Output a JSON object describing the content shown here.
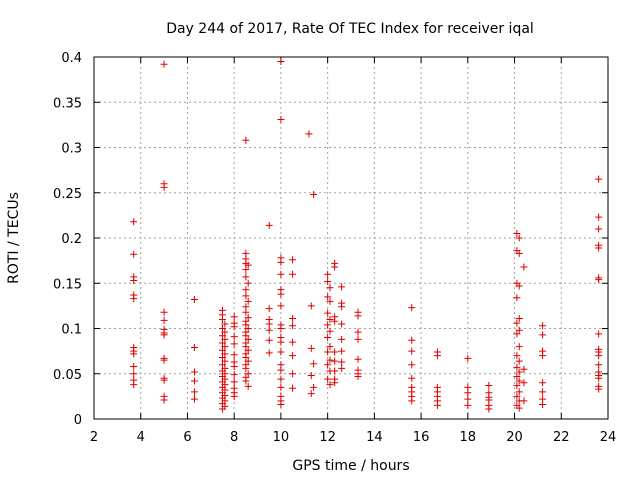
{
  "chart_data": {
    "type": "scatter",
    "title": "Day 244 of 2017, Rate Of TEC Index for receiver iqal",
    "xlabel": "GPS time / hours",
    "ylabel": "ROTI / TECUs",
    "xlim": [
      2,
      24
    ],
    "ylim": [
      0,
      0.4
    ],
    "xticks": [
      2,
      4,
      6,
      8,
      10,
      12,
      14,
      16,
      18,
      20,
      22,
      24
    ],
    "xtick_labels": [
      "2",
      "4",
      "6",
      "8",
      "10",
      "12",
      "14",
      "16",
      "18",
      "20",
      "22",
      "24"
    ],
    "yticks": [
      0,
      0.05,
      0.1,
      0.15,
      0.2,
      0.25,
      0.3,
      0.35,
      0.4
    ],
    "ytick_labels": [
      "0",
      "0.05",
      "0.1",
      "0.15",
      "0.2",
      "0.25",
      "0.3",
      "0.35",
      "0.4"
    ],
    "grid": true,
    "marker": "+",
    "color": "#e00000",
    "series": [
      {
        "name": "ROTI",
        "points": [
          [
            3.7,
            0.218
          ],
          [
            3.7,
            0.182
          ],
          [
            3.7,
            0.157
          ],
          [
            3.7,
            0.153
          ],
          [
            3.7,
            0.137
          ],
          [
            3.7,
            0.133
          ],
          [
            3.7,
            0.079
          ],
          [
            3.7,
            0.075
          ],
          [
            3.7,
            0.072
          ],
          [
            3.7,
            0.058
          ],
          [
            3.7,
            0.05
          ],
          [
            3.7,
            0.043
          ],
          [
            3.7,
            0.038
          ],
          [
            5.0,
            0.392
          ],
          [
            5.0,
            0.26
          ],
          [
            5.0,
            0.256
          ],
          [
            5.0,
            0.118
          ],
          [
            5.0,
            0.109
          ],
          [
            5.0,
            0.099
          ],
          [
            5.0,
            0.095
          ],
          [
            5.0,
            0.093
          ],
          [
            5.0,
            0.067
          ],
          [
            5.0,
            0.065
          ],
          [
            5.0,
            0.045
          ],
          [
            5.0,
            0.043
          ],
          [
            5.0,
            0.025
          ],
          [
            5.0,
            0.021
          ],
          [
            6.3,
            0.132
          ],
          [
            6.3,
            0.079
          ],
          [
            6.3,
            0.052
          ],
          [
            6.3,
            0.042
          ],
          [
            6.3,
            0.03
          ],
          [
            6.3,
            0.022
          ],
          [
            7.5,
            0.12
          ],
          [
            7.5,
            0.115
          ],
          [
            7.5,
            0.11
          ],
          [
            7.6,
            0.105
          ],
          [
            7.5,
            0.1
          ],
          [
            7.6,
            0.096
          ],
          [
            7.5,
            0.092
          ],
          [
            7.6,
            0.088
          ],
          [
            7.5,
            0.084
          ],
          [
            7.6,
            0.08
          ],
          [
            7.5,
            0.076
          ],
          [
            7.6,
            0.072
          ],
          [
            7.5,
            0.068
          ],
          [
            7.6,
            0.064
          ],
          [
            7.5,
            0.06
          ],
          [
            7.6,
            0.056
          ],
          [
            7.5,
            0.053
          ],
          [
            7.6,
            0.05
          ],
          [
            7.5,
            0.047
          ],
          [
            7.6,
            0.044
          ],
          [
            7.5,
            0.041
          ],
          [
            7.6,
            0.038
          ],
          [
            7.5,
            0.035
          ],
          [
            7.6,
            0.032
          ],
          [
            7.5,
            0.029
          ],
          [
            7.6,
            0.026
          ],
          [
            7.5,
            0.023
          ],
          [
            7.6,
            0.02
          ],
          [
            7.5,
            0.017
          ],
          [
            7.6,
            0.014
          ],
          [
            7.5,
            0.011
          ],
          [
            8.0,
            0.113
          ],
          [
            8.0,
            0.106
          ],
          [
            8.0,
            0.102
          ],
          [
            8.0,
            0.091
          ],
          [
            8.0,
            0.083
          ],
          [
            8.0,
            0.071
          ],
          [
            8.0,
            0.063
          ],
          [
            8.0,
            0.058
          ],
          [
            8.0,
            0.049
          ],
          [
            8.0,
            0.041
          ],
          [
            8.0,
            0.034
          ],
          [
            8.0,
            0.029
          ],
          [
            8.0,
            0.025
          ],
          [
            8.5,
            0.308
          ],
          [
            8.5,
            0.183
          ],
          [
            8.5,
            0.177
          ],
          [
            8.5,
            0.172
          ],
          [
            8.6,
            0.17
          ],
          [
            8.5,
            0.165
          ],
          [
            8.5,
            0.157
          ],
          [
            8.6,
            0.15
          ],
          [
            8.5,
            0.143
          ],
          [
            8.5,
            0.136
          ],
          [
            8.6,
            0.13
          ],
          [
            8.5,
            0.124
          ],
          [
            8.5,
            0.118
          ],
          [
            8.6,
            0.112
          ],
          [
            8.5,
            0.108
          ],
          [
            8.5,
            0.104
          ],
          [
            8.6,
            0.1
          ],
          [
            8.5,
            0.096
          ],
          [
            8.5,
            0.092
          ],
          [
            8.6,
            0.088
          ],
          [
            8.5,
            0.084
          ],
          [
            8.5,
            0.08
          ],
          [
            8.6,
            0.076
          ],
          [
            8.5,
            0.072
          ],
          [
            8.5,
            0.068
          ],
          [
            8.6,
            0.064
          ],
          [
            8.5,
            0.06
          ],
          [
            8.5,
            0.056
          ],
          [
            8.6,
            0.05
          ],
          [
            8.5,
            0.046
          ],
          [
            8.5,
            0.042
          ],
          [
            8.6,
            0.036
          ],
          [
            9.5,
            0.214
          ],
          [
            9.5,
            0.122
          ],
          [
            9.5,
            0.11
          ],
          [
            9.5,
            0.105
          ],
          [
            9.5,
            0.098
          ],
          [
            9.5,
            0.087
          ],
          [
            9.5,
            0.073
          ],
          [
            10.0,
            0.395
          ],
          [
            10.0,
            0.331
          ],
          [
            10.0,
            0.178
          ],
          [
            10.0,
            0.173
          ],
          [
            10.0,
            0.16
          ],
          [
            10.0,
            0.143
          ],
          [
            10.0,
            0.138
          ],
          [
            10.0,
            0.125
          ],
          [
            10.0,
            0.104
          ],
          [
            10.0,
            0.1
          ],
          [
            10.0,
            0.09
          ],
          [
            10.0,
            0.085
          ],
          [
            10.0,
            0.074
          ],
          [
            10.0,
            0.06
          ],
          [
            10.0,
            0.054
          ],
          [
            10.0,
            0.044
          ],
          [
            10.0,
            0.035
          ],
          [
            10.0,
            0.025
          ],
          [
            10.0,
            0.02
          ],
          [
            10.0,
            0.016
          ],
          [
            10.5,
            0.176
          ],
          [
            10.5,
            0.16
          ],
          [
            10.5,
            0.111
          ],
          [
            10.5,
            0.103
          ],
          [
            10.5,
            0.085
          ],
          [
            10.5,
            0.07
          ],
          [
            10.5,
            0.05
          ],
          [
            10.5,
            0.034
          ],
          [
            11.2,
            0.315
          ],
          [
            11.4,
            0.248
          ],
          [
            11.3,
            0.125
          ],
          [
            11.3,
            0.078
          ],
          [
            11.4,
            0.061
          ],
          [
            11.3,
            0.048
          ],
          [
            11.4,
            0.035
          ],
          [
            11.3,
            0.028
          ],
          [
            12.0,
            0.16
          ],
          [
            12.0,
            0.152
          ],
          [
            12.1,
            0.145
          ],
          [
            12.0,
            0.135
          ],
          [
            12.1,
            0.13
          ],
          [
            12.0,
            0.117
          ],
          [
            12.1,
            0.11
          ],
          [
            12.0,
            0.104
          ],
          [
            12.1,
            0.097
          ],
          [
            12.0,
            0.09
          ],
          [
            12.1,
            0.08
          ],
          [
            12.0,
            0.074
          ],
          [
            12.1,
            0.065
          ],
          [
            12.0,
            0.06
          ],
          [
            12.1,
            0.053
          ],
          [
            12.0,
            0.044
          ],
          [
            12.1,
            0.038
          ],
          [
            12.3,
            0.172
          ],
          [
            12.3,
            0.168
          ],
          [
            12.3,
            0.113
          ],
          [
            12.3,
            0.108
          ],
          [
            12.3,
            0.074
          ],
          [
            12.3,
            0.064
          ],
          [
            12.3,
            0.053
          ],
          [
            12.3,
            0.044
          ],
          [
            12.3,
            0.04
          ],
          [
            12.6,
            0.146
          ],
          [
            12.6,
            0.128
          ],
          [
            12.6,
            0.124
          ],
          [
            12.6,
            0.105
          ],
          [
            12.6,
            0.088
          ],
          [
            12.6,
            0.075
          ],
          [
            12.6,
            0.063
          ],
          [
            12.6,
            0.056
          ],
          [
            13.3,
            0.118
          ],
          [
            13.3,
            0.114
          ],
          [
            13.3,
            0.096
          ],
          [
            13.3,
            0.088
          ],
          [
            13.3,
            0.066
          ],
          [
            13.3,
            0.054
          ],
          [
            13.3,
            0.05
          ],
          [
            13.3,
            0.047
          ],
          [
            15.6,
            0.123
          ],
          [
            15.6,
            0.087
          ],
          [
            15.6,
            0.075
          ],
          [
            15.6,
            0.06
          ],
          [
            15.6,
            0.045
          ],
          [
            15.6,
            0.035
          ],
          [
            15.6,
            0.03
          ],
          [
            15.6,
            0.025
          ],
          [
            15.6,
            0.02
          ],
          [
            16.7,
            0.074
          ],
          [
            16.7,
            0.07
          ],
          [
            16.7,
            0.035
          ],
          [
            16.7,
            0.03
          ],
          [
            16.7,
            0.025
          ],
          [
            16.7,
            0.02
          ],
          [
            16.7,
            0.015
          ],
          [
            18.0,
            0.067
          ],
          [
            18.0,
            0.035
          ],
          [
            18.0,
            0.029
          ],
          [
            18.0,
            0.022
          ],
          [
            18.0,
            0.015
          ],
          [
            18.9,
            0.037
          ],
          [
            18.9,
            0.029
          ],
          [
            18.9,
            0.024
          ],
          [
            18.9,
            0.021
          ],
          [
            18.9,
            0.015
          ],
          [
            18.9,
            0.011
          ],
          [
            20.1,
            0.205
          ],
          [
            20.2,
            0.2
          ],
          [
            20.1,
            0.186
          ],
          [
            20.2,
            0.183
          ],
          [
            20.1,
            0.15
          ],
          [
            20.2,
            0.147
          ],
          [
            20.1,
            0.134
          ],
          [
            20.2,
            0.111
          ],
          [
            20.1,
            0.106
          ],
          [
            20.2,
            0.098
          ],
          [
            20.1,
            0.094
          ],
          [
            20.2,
            0.08
          ],
          [
            20.1,
            0.07
          ],
          [
            20.2,
            0.064
          ],
          [
            20.1,
            0.057
          ],
          [
            20.2,
            0.052
          ],
          [
            20.1,
            0.047
          ],
          [
            20.2,
            0.042
          ],
          [
            20.1,
            0.037
          ],
          [
            20.2,
            0.03
          ],
          [
            20.1,
            0.025
          ],
          [
            20.2,
            0.02
          ],
          [
            20.1,
            0.015
          ],
          [
            20.2,
            0.012
          ],
          [
            20.4,
            0.168
          ],
          [
            20.4,
            0.055
          ],
          [
            20.4,
            0.04
          ],
          [
            20.4,
            0.02
          ],
          [
            21.2,
            0.103
          ],
          [
            21.2,
            0.093
          ],
          [
            21.2,
            0.075
          ],
          [
            21.2,
            0.07
          ],
          [
            21.2,
            0.04
          ],
          [
            21.2,
            0.03
          ],
          [
            21.2,
            0.022
          ],
          [
            21.2,
            0.016
          ],
          [
            23.6,
            0.265
          ],
          [
            23.6,
            0.223
          ],
          [
            23.6,
            0.21
          ],
          [
            23.6,
            0.192
          ],
          [
            23.6,
            0.189
          ],
          [
            23.6,
            0.156
          ],
          [
            23.6,
            0.154
          ],
          [
            23.6,
            0.094
          ],
          [
            23.6,
            0.077
          ],
          [
            23.6,
            0.074
          ],
          [
            23.6,
            0.07
          ],
          [
            23.6,
            0.06
          ],
          [
            23.6,
            0.052
          ],
          [
            23.6,
            0.048
          ],
          [
            23.6,
            0.045
          ],
          [
            23.6,
            0.036
          ],
          [
            23.6,
            0.033
          ]
        ]
      }
    ]
  }
}
